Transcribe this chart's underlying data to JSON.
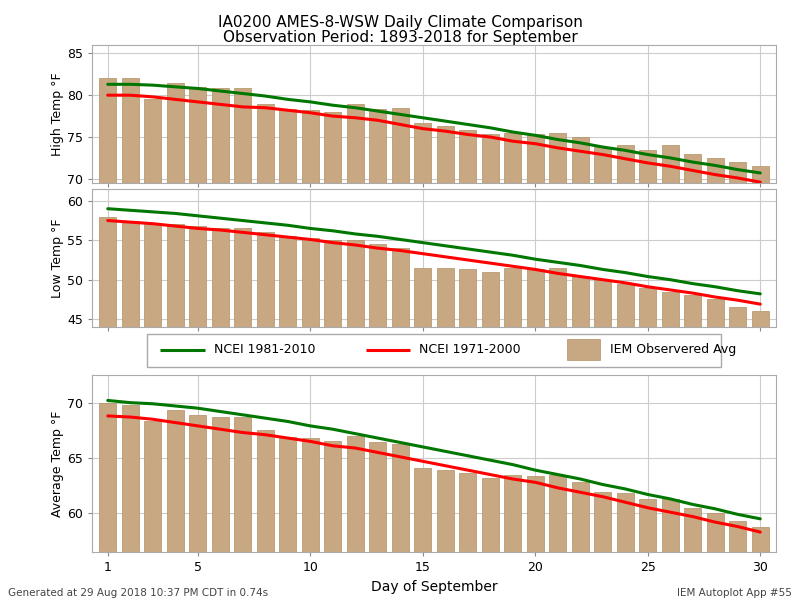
{
  "title_line1": "IA0200 AMES-8-WSW Daily Climate Comparison",
  "title_line2": "Observation Period: 1893-2018 for September",
  "xlabel": "Day of September",
  "footer_left": "Generated at 29 Aug 2018 10:37 PM CDT in 0.74s",
  "footer_right": "IEM Autoplot App #55",
  "days": [
    1,
    2,
    3,
    4,
    5,
    6,
    7,
    8,
    9,
    10,
    11,
    12,
    13,
    14,
    15,
    16,
    17,
    18,
    19,
    20,
    21,
    22,
    23,
    24,
    25,
    26,
    27,
    28,
    29,
    30
  ],
  "high_ncei8110": [
    81.3,
    81.3,
    81.2,
    81.0,
    80.8,
    80.5,
    80.2,
    79.9,
    79.5,
    79.2,
    78.8,
    78.5,
    78.1,
    77.7,
    77.3,
    76.9,
    76.5,
    76.1,
    75.6,
    75.2,
    74.7,
    74.3,
    73.8,
    73.4,
    72.9,
    72.5,
    72.0,
    71.6,
    71.1,
    70.7
  ],
  "high_ncei7100": [
    80.0,
    80.0,
    79.8,
    79.5,
    79.2,
    78.9,
    78.6,
    78.5,
    78.2,
    77.9,
    77.5,
    77.3,
    77.0,
    76.5,
    76.0,
    75.7,
    75.3,
    75.0,
    74.5,
    74.2,
    73.7,
    73.3,
    72.9,
    72.4,
    71.9,
    71.5,
    71.0,
    70.5,
    70.1,
    69.6
  ],
  "high_obs": [
    82.0,
    82.0,
    79.5,
    81.5,
    81.0,
    80.9,
    80.9,
    79.0,
    78.3,
    78.2,
    78.0,
    79.0,
    78.3,
    78.5,
    76.7,
    76.3,
    75.8,
    75.3,
    75.5,
    75.4,
    75.5,
    75.0,
    73.8,
    74.0,
    73.5,
    74.0,
    73.0,
    72.5,
    72.0,
    71.5
  ],
  "low_ncei8110": [
    59.0,
    58.8,
    58.6,
    58.4,
    58.1,
    57.8,
    57.5,
    57.2,
    56.9,
    56.5,
    56.2,
    55.8,
    55.5,
    55.1,
    54.7,
    54.3,
    53.9,
    53.5,
    53.1,
    52.6,
    52.2,
    51.8,
    51.3,
    50.9,
    50.4,
    50.0,
    49.5,
    49.1,
    48.6,
    48.2
  ],
  "low_ncei7100": [
    57.5,
    57.3,
    57.1,
    56.8,
    56.5,
    56.3,
    56.0,
    55.7,
    55.4,
    55.1,
    54.7,
    54.4,
    54.0,
    53.7,
    53.3,
    52.9,
    52.5,
    52.1,
    51.7,
    51.3,
    50.8,
    50.4,
    50.0,
    49.6,
    49.1,
    48.7,
    48.3,
    47.8,
    47.4,
    46.9
  ],
  "low_obs": [
    58.0,
    57.5,
    57.0,
    57.0,
    56.8,
    56.5,
    56.5,
    56.0,
    55.5,
    55.3,
    55.0,
    55.0,
    54.5,
    54.0,
    51.5,
    51.5,
    51.3,
    51.0,
    51.5,
    51.3,
    51.5,
    50.5,
    50.0,
    49.5,
    49.0,
    48.5,
    48.0,
    47.5,
    46.5,
    46.0
  ],
  "avg_ncei8110": [
    70.2,
    70.0,
    69.9,
    69.7,
    69.5,
    69.2,
    68.9,
    68.6,
    68.3,
    67.9,
    67.6,
    67.2,
    66.8,
    66.4,
    66.0,
    65.6,
    65.2,
    64.8,
    64.4,
    63.9,
    63.5,
    63.1,
    62.6,
    62.2,
    61.7,
    61.3,
    60.8,
    60.4,
    59.9,
    59.5
  ],
  "avg_ncei7100": [
    68.8,
    68.7,
    68.5,
    68.2,
    67.9,
    67.6,
    67.3,
    67.1,
    66.8,
    66.5,
    66.1,
    65.9,
    65.5,
    65.1,
    64.7,
    64.3,
    63.9,
    63.5,
    63.1,
    62.8,
    62.3,
    61.9,
    61.5,
    61.0,
    60.5,
    60.1,
    59.7,
    59.2,
    58.8,
    58.3
  ],
  "avg_obs": [
    70.0,
    69.8,
    68.3,
    69.3,
    68.9,
    68.7,
    68.7,
    67.5,
    66.9,
    66.8,
    66.5,
    67.0,
    66.4,
    66.3,
    64.1,
    63.9,
    63.6,
    63.2,
    63.5,
    63.4,
    63.5,
    62.8,
    61.9,
    61.8,
    61.3,
    61.3,
    60.5,
    60.0,
    59.3,
    58.8
  ],
  "bar_color": "#c8a882",
  "bar_edge_color": "#b09060",
  "ncei8110_color": "#007700",
  "ncei7100_color": "#ff0000",
  "high_ylim": [
    69.5,
    86
  ],
  "high_yticks": [
    70,
    75,
    80,
    85
  ],
  "high_ylabel": "High Temp °F",
  "low_ylim": [
    44.0,
    61.5
  ],
  "low_yticks": [
    45,
    50,
    55,
    60
  ],
  "low_ylabel": "Low Temp °F",
  "avg_ylim": [
    56.5,
    72.5
  ],
  "avg_yticks": [
    60,
    65,
    70
  ],
  "avg_ylabel": "Average Temp °F",
  "legend_ncei8110": "NCEI 1981-2010",
  "legend_ncei7100": "NCEI 1971-2000",
  "legend_obs": "IEM Observered Avg",
  "background_color": "#ffffff",
  "grid_color": "#cccccc",
  "xticks": [
    1,
    5,
    10,
    15,
    20,
    25,
    30
  ],
  "line_width": 2.2,
  "bar_width": 0.75
}
